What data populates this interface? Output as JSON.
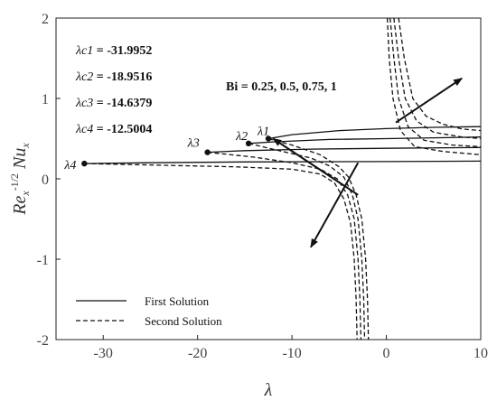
{
  "chart_data": {
    "type": "line",
    "xlabel": "λ",
    "ylabel": "Re_x^{-1/2} Nu_x",
    "xlim": [
      -35,
      10
    ],
    "ylim": [
      -2,
      2
    ],
    "x_ticks": [
      -30,
      -20,
      -10,
      0,
      10
    ],
    "x_tick_labels": [
      "-30",
      "-20",
      "-10",
      "0",
      "10"
    ],
    "y_ticks": [
      -2,
      -1,
      0,
      1,
      2
    ],
    "y_tick_labels": [
      "-2",
      "-1",
      "0",
      "1",
      "2"
    ],
    "grid": false,
    "legend_position": "bottom-left",
    "legend": [
      {
        "label": "First Solution",
        "style": "solid"
      },
      {
        "label": "Second Solution",
        "style": "dashed"
      }
    ],
    "critical_labels": [
      {
        "name": "λc1",
        "value": "-31.9952"
      },
      {
        "name": "λc2",
        "value": "-18.9516"
      },
      {
        "name": "λc3",
        "value": "-14.6379"
      },
      {
        "name": "λc4",
        "value": "-12.5004"
      }
    ],
    "bi_annotation": "Bi = 0.25, 0.5, 0.75, 1",
    "critical_points": [
      {
        "label": "λ1",
        "x": -12.5,
        "y": 0.5
      },
      {
        "label": "λ2",
        "x": -14.6,
        "y": 0.44
      },
      {
        "label": "λ3",
        "x": -18.95,
        "y": 0.33
      },
      {
        "label": "λ4",
        "x": -32.0,
        "y": 0.19
      }
    ],
    "series": [
      {
        "style": "solid",
        "points": [
          [
            -12.5,
            0.5
          ],
          [
            -10,
            0.55
          ],
          [
            -5,
            0.6
          ],
          [
            0,
            0.625
          ],
          [
            5,
            0.64
          ],
          [
            10,
            0.65
          ]
        ]
      },
      {
        "style": "solid",
        "points": [
          [
            -14.6,
            0.44
          ],
          [
            -12,
            0.46
          ],
          [
            -6,
            0.49
          ],
          [
            0,
            0.5
          ],
          [
            5,
            0.51
          ],
          [
            10,
            0.52
          ]
        ]
      },
      {
        "style": "solid",
        "points": [
          [
            -18.95,
            0.33
          ],
          [
            -15,
            0.35
          ],
          [
            -8,
            0.37
          ],
          [
            0,
            0.38
          ],
          [
            10,
            0.39
          ]
        ]
      },
      {
        "style": "solid",
        "points": [
          [
            -32.0,
            0.19
          ],
          [
            -25,
            0.2
          ],
          [
            -15,
            0.21
          ],
          [
            0,
            0.215
          ],
          [
            10,
            0.22
          ]
        ]
      },
      {
        "style": "dashed",
        "points": [
          [
            -12.5,
            0.5
          ],
          [
            -10,
            0.42
          ],
          [
            -7,
            0.3
          ],
          [
            -5,
            0.15
          ],
          [
            -4,
            0.02
          ],
          [
            -3.2,
            -0.2
          ],
          [
            -2.6,
            -0.5
          ],
          [
            -2.2,
            -1.0
          ],
          [
            -2.0,
            -1.5
          ],
          [
            -1.9,
            -2.0
          ]
        ]
      },
      {
        "style": "dashed",
        "points": [
          [
            -14.6,
            0.44
          ],
          [
            -11,
            0.34
          ],
          [
            -8,
            0.26
          ],
          [
            -6,
            0.16
          ],
          [
            -4.5,
            0.02
          ],
          [
            -3.6,
            -0.2
          ],
          [
            -3.0,
            -0.5
          ],
          [
            -2.6,
            -1.0
          ],
          [
            -2.4,
            -1.5
          ],
          [
            -2.3,
            -2.0
          ]
        ]
      },
      {
        "style": "dashed",
        "points": [
          [
            -18.95,
            0.33
          ],
          [
            -14,
            0.27
          ],
          [
            -10,
            0.2
          ],
          [
            -7,
            0.12
          ],
          [
            -5.2,
            0.0
          ],
          [
            -4.1,
            -0.2
          ],
          [
            -3.4,
            -0.5
          ],
          [
            -3.0,
            -1.0
          ],
          [
            -2.8,
            -1.5
          ],
          [
            -2.7,
            -2.0
          ]
        ]
      },
      {
        "style": "dashed",
        "points": [
          [
            -32.0,
            0.19
          ],
          [
            -24,
            0.17
          ],
          [
            -16,
            0.15
          ],
          [
            -10,
            0.12
          ],
          [
            -7,
            0.06
          ],
          [
            -5.5,
            -0.05
          ],
          [
            -4.5,
            -0.25
          ],
          [
            -3.8,
            -0.55
          ],
          [
            -3.4,
            -1.0
          ],
          [
            -3.2,
            -1.5
          ],
          [
            -3.1,
            -2.0
          ]
        ]
      },
      {
        "style": "dashed",
        "points": [
          [
            0.1,
            2.0
          ],
          [
            0.3,
            1.5
          ],
          [
            0.7,
            1.0
          ],
          [
            1.5,
            0.6
          ],
          [
            3,
            0.4
          ],
          [
            6,
            0.34
          ],
          [
            10,
            0.3
          ]
        ]
      },
      {
        "style": "dashed",
        "points": [
          [
            0.4,
            2.0
          ],
          [
            0.8,
            1.5
          ],
          [
            1.3,
            1.0
          ],
          [
            2.3,
            0.65
          ],
          [
            4,
            0.48
          ],
          [
            7,
            0.42
          ],
          [
            10,
            0.4
          ]
        ]
      },
      {
        "style": "dashed",
        "points": [
          [
            0.8,
            2.0
          ],
          [
            1.3,
            1.5
          ],
          [
            2.0,
            1.0
          ],
          [
            3.2,
            0.72
          ],
          [
            5,
            0.58
          ],
          [
            8,
            0.52
          ],
          [
            10,
            0.5
          ]
        ]
      },
      {
        "style": "dashed",
        "points": [
          [
            1.3,
            2.0
          ],
          [
            1.9,
            1.5
          ],
          [
            2.8,
            1.0
          ],
          [
            4.2,
            0.78
          ],
          [
            6,
            0.68
          ],
          [
            8,
            0.62
          ],
          [
            10,
            0.6
          ]
        ]
      }
    ],
    "arrows": [
      {
        "from": [
          1,
          0.7
        ],
        "to": [
          8,
          1.25
        ]
      },
      {
        "from": [
          -3,
          -0.2
        ],
        "to": [
          -12,
          0.5
        ]
      },
      {
        "from": [
          -3,
          0.2
        ],
        "to": [
          -8,
          -0.85
        ]
      }
    ]
  }
}
